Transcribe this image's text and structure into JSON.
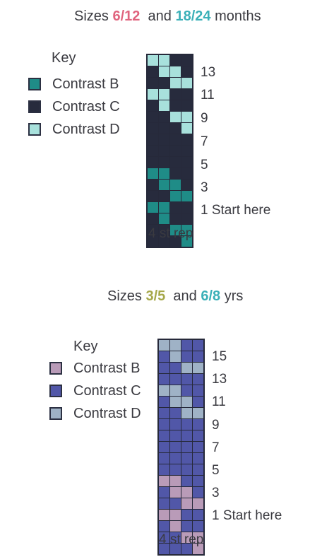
{
  "charts": [
    {
      "title": {
        "prefix": "Sizes ",
        "size1": "6/12",
        "joiner": "and ",
        "size2": "18/24",
        "suffix": " months",
        "size1_color": "#e0647e",
        "size2_color": "#3bb0b8"
      },
      "key": {
        "label": "Key",
        "items": [
          {
            "code": "B",
            "label": "Contrast B",
            "color": "#1f8c87"
          },
          {
            "code": "C",
            "label": "Contrast C",
            "color": "#272b3d"
          },
          {
            "code": "D",
            "label": "Contrast D",
            "color": "#a8e1dc"
          }
        ]
      },
      "row_labels": [
        "13",
        "11",
        "9",
        "7",
        "5",
        "3",
        "1 Start here"
      ],
      "rep_label": "4 st rep",
      "grid_rows": [
        [
          "D",
          "D",
          "C",
          "C"
        ],
        [
          "C",
          "D",
          "D",
          "C"
        ],
        [
          "C",
          "C",
          "D",
          "D"
        ],
        [
          "D",
          "D",
          "C",
          "C"
        ],
        [
          "C",
          "D",
          "C",
          "C"
        ],
        [
          "C",
          "C",
          "D",
          "D"
        ],
        [
          "C",
          "C",
          "C",
          "D"
        ],
        [
          "C",
          "C",
          "C",
          "C"
        ],
        [
          "C",
          "C",
          "C",
          "C"
        ],
        [
          "C",
          "C",
          "C",
          "C"
        ],
        [
          "B",
          "B",
          "C",
          "C"
        ],
        [
          "C",
          "B",
          "B",
          "C"
        ],
        [
          "C",
          "C",
          "B",
          "B"
        ],
        [
          "B",
          "B",
          "C",
          "C"
        ],
        [
          "C",
          "B",
          "C",
          "C"
        ],
        [
          "C",
          "C",
          "B",
          "B"
        ],
        [
          "C",
          "C",
          "C",
          "B"
        ]
      ]
    },
    {
      "title": {
        "prefix": "Sizes ",
        "size1": "3/5",
        "joiner": "and ",
        "size2": "6/8",
        "suffix": " yrs",
        "size1_color": "#a6a84a",
        "size2_color": "#3bb0b8"
      },
      "key": {
        "label": "Key",
        "items": [
          {
            "code": "B",
            "label": "Contrast B",
            "color": "#b99bb8"
          },
          {
            "code": "C",
            "label": "Contrast C",
            "color": "#5157a8"
          },
          {
            "code": "D",
            "label": "Contrast D",
            "color": "#9fb2c6"
          }
        ]
      },
      "row_labels": [
        "15",
        "13",
        "11",
        "9",
        "7",
        "5",
        "3",
        "1 Start here"
      ],
      "rep_label": "4 st rep",
      "grid_rows": [
        [
          "D",
          "D",
          "C",
          "C"
        ],
        [
          "C",
          "D",
          "C",
          "C"
        ],
        [
          "C",
          "C",
          "D",
          "D"
        ],
        [
          "C",
          "C",
          "C",
          "C"
        ],
        [
          "D",
          "D",
          "C",
          "C"
        ],
        [
          "C",
          "D",
          "D",
          "C"
        ],
        [
          "C",
          "C",
          "D",
          "D"
        ],
        [
          "C",
          "C",
          "C",
          "C"
        ],
        [
          "C",
          "C",
          "C",
          "C"
        ],
        [
          "C",
          "C",
          "C",
          "C"
        ],
        [
          "C",
          "C",
          "C",
          "C"
        ],
        [
          "C",
          "C",
          "C",
          "C"
        ],
        [
          "B",
          "B",
          "C",
          "C"
        ],
        [
          "C",
          "B",
          "B",
          "C"
        ],
        [
          "C",
          "C",
          "B",
          "B"
        ],
        [
          "B",
          "B",
          "C",
          "C"
        ],
        [
          "C",
          "B",
          "C",
          "C"
        ],
        [
          "C",
          "C",
          "B",
          "B"
        ],
        [
          "C",
          "C",
          "C",
          "B"
        ]
      ]
    }
  ]
}
